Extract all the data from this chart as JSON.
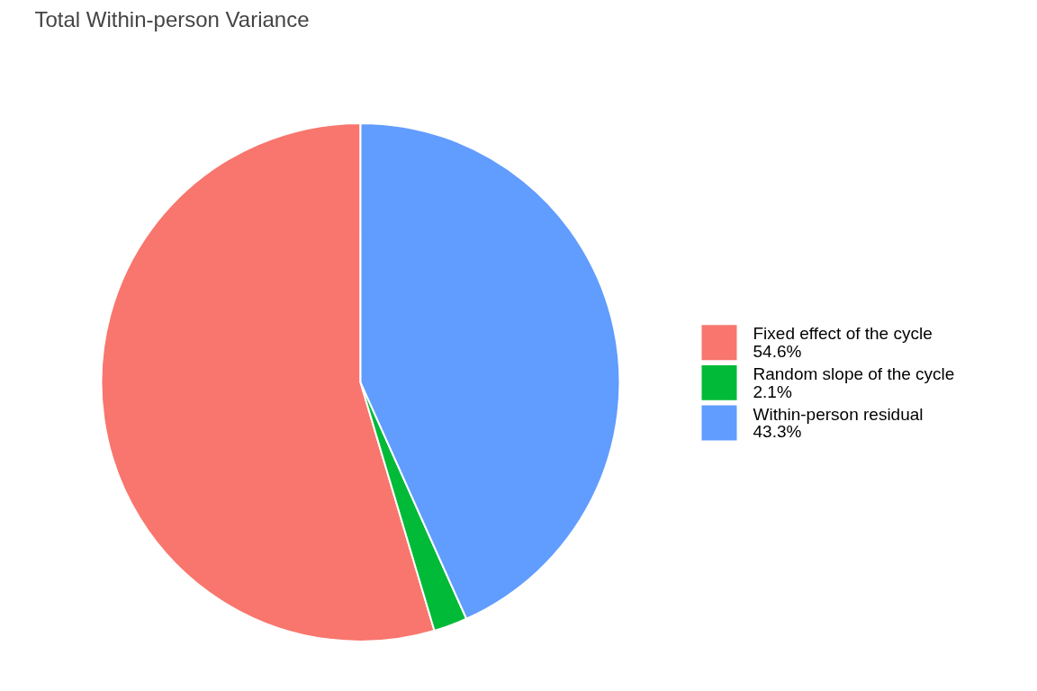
{
  "chart_data": {
    "type": "pie",
    "title": "Total Within-person Variance",
    "categories": [
      "Fixed effect of the cycle",
      "Random slope of the cycle",
      "Within-person residual"
    ],
    "values": [
      54.6,
      2.1,
      43.3
    ],
    "value_labels": [
      "54.6%",
      "2.1%",
      "43.3%"
    ],
    "colors": [
      "#f8766d",
      "#00ba38",
      "#619cff"
    ],
    "legend": "right"
  }
}
